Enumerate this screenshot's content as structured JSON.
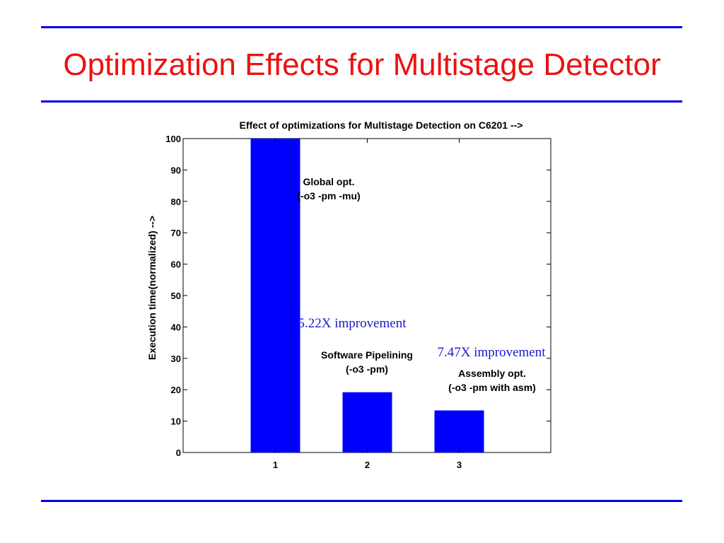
{
  "slide": {
    "title": "Optimization Effects for Multistage Detector",
    "title_color": "#ee1111",
    "rule_color": "#0000dd"
  },
  "chart_data": {
    "type": "bar",
    "title": "Effect of optimizations for Multistage Detection on C6201 -->",
    "xlabel": "",
    "ylabel": "Execution time(normalized) -->",
    "categories": [
      "1",
      "2",
      "3"
    ],
    "values": [
      100,
      19.2,
      13.4
    ],
    "ylim": [
      0,
      100
    ],
    "yticks": [
      0,
      10,
      20,
      30,
      40,
      50,
      60,
      70,
      80,
      90,
      100
    ],
    "grid": false,
    "bar_color": "#0000ff",
    "annotations": [
      {
        "lines": [
          "Global opt.",
          "(-o3 -pm -mu)"
        ],
        "style": "bold"
      },
      {
        "lines": [
          "5.22X improvement"
        ],
        "style": "serif"
      },
      {
        "lines": [
          "Software Pipelining",
          "(-o3 -pm)"
        ],
        "style": "bold"
      },
      {
        "lines": [
          "7.47X improvement"
        ],
        "style": "serif"
      },
      {
        "lines": [
          "Assembly opt.",
          "(-o3 -pm with asm)"
        ],
        "style": "bold"
      }
    ],
    "annotation_color": "#1a1acc"
  }
}
